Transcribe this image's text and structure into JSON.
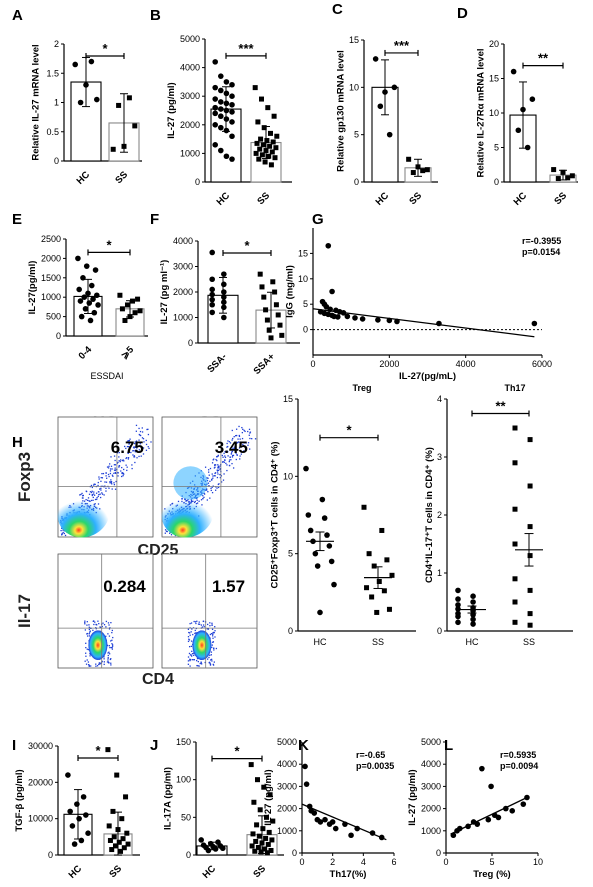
{
  "figure": {
    "panel_letters": [
      "A",
      "B",
      "C",
      "D",
      "E",
      "F",
      "G",
      "H",
      "I",
      "J",
      "K",
      "L"
    ]
  },
  "flow": {
    "col_labels": [
      "HC",
      "SS"
    ],
    "row_labels": [
      "Foxp3",
      "Il-17"
    ],
    "x_labels": [
      "CD25",
      "CD4"
    ],
    "values": [
      [
        "6.75",
        "3.45"
      ],
      [
        "0.284",
        "1.57"
      ]
    ],
    "colors": {
      "dots": "#1f3fd6",
      "dense": "#2fb0ff",
      "core": "#2ad66b",
      "hot": "#ffe23a"
    }
  },
  "chart_data": [
    {
      "panel": "A",
      "type": "bar",
      "categories": [
        "HC",
        "SS"
      ],
      "ylabel": "Relative IL-27 mRNA level",
      "ylim": [
        0,
        2
      ],
      "yticks": [
        0,
        0.5,
        1,
        1.5,
        2
      ],
      "means": [
        1.35,
        0.65
      ],
      "sd": [
        0.42,
        0.5
      ],
      "significance": "*",
      "points": [
        [
          1.65,
          1.3,
          1.05,
          1.0,
          1.7
        ],
        [
          0.2,
          0.25,
          0.6,
          0.95,
          1.08
        ]
      ]
    },
    {
      "panel": "B",
      "type": "bar",
      "categories": [
        "HC",
        "SS"
      ],
      "ylabel": "IL-27 (pg/ml)",
      "ylim": [
        0,
        5000
      ],
      "yticks": [
        0,
        1000,
        2000,
        3000,
        4000,
        5000
      ],
      "means": [
        2550,
        1380
      ],
      "sd": [
        780,
        560
      ],
      "significance": "***",
      "points": [
        [
          4200,
          3700,
          3500,
          3400,
          3300,
          3200,
          3100,
          3000,
          2900,
          2800,
          2750,
          2700,
          2600,
          2550,
          2500,
          2450,
          2400,
          2300,
          2200,
          2100,
          2000,
          1900,
          1800,
          1600,
          1300,
          1100,
          900,
          800
        ],
        [
          3300,
          2900,
          2600,
          2300,
          2100,
          1900,
          1700,
          1600,
          1500,
          1450,
          1400,
          1350,
          1300,
          1250,
          1200,
          1150,
          1100,
          1050,
          1000,
          950,
          900,
          850,
          800,
          700,
          600
        ]
      ]
    },
    {
      "panel": "C",
      "type": "bar",
      "categories": [
        "HC",
        "SS"
      ],
      "ylabel": "Relative gp130 mRNA level",
      "ylim": [
        0,
        15
      ],
      "yticks": [
        0,
        5,
        10,
        15
      ],
      "means": [
        10,
        1.5
      ],
      "sd": [
        2.9,
        0.9
      ],
      "significance": "***",
      "points": [
        [
          13,
          9.5,
          10,
          8,
          5
        ],
        [
          2.4,
          1.6,
          1.3,
          1.0,
          1.2
        ]
      ]
    },
    {
      "panel": "D",
      "type": "bar",
      "categories": [
        "HC",
        "SS"
      ],
      "ylabel": "Relative IL-27Rα mRNA level",
      "ylim": [
        0,
        20
      ],
      "yticks": [
        0,
        5,
        10,
        15,
        20
      ],
      "means": [
        9.7,
        1.0
      ],
      "sd": [
        4.8,
        0.7
      ],
      "significance": "**",
      "points": [
        [
          16,
          10.5,
          12,
          7.5,
          5
        ],
        [
          1.8,
          1.4,
          0.9,
          0.5,
          0.6
        ]
      ]
    },
    {
      "panel": "E",
      "type": "bar",
      "categories": [
        "0-4",
        "⩾5"
      ],
      "xlabel": "ESSDAI",
      "ylabel": "IL-27(pg/ml)",
      "ylim": [
        0,
        2500
      ],
      "yticks": [
        0,
        500,
        1000,
        1500,
        2000,
        2500
      ],
      "means": [
        1020,
        700
      ],
      "sd": [
        440,
        210
      ],
      "significance": "*",
      "points": [
        [
          2000,
          1800,
          1700,
          1500,
          1300,
          1200,
          1100,
          1050,
          1000,
          950,
          900,
          850,
          800,
          700,
          600,
          500,
          400
        ],
        [
          1050,
          950,
          900,
          800,
          700,
          650,
          600,
          500,
          400
        ]
      ]
    },
    {
      "panel": "F",
      "type": "bar",
      "categories": [
        "SSA-",
        "SSA+"
      ],
      "ylabel": "IL-27 (pg ml⁻¹)",
      "ylim": [
        0,
        4000
      ],
      "yticks": [
        0,
        1000,
        2000,
        3000,
        4000
      ],
      "means": [
        1870,
        1290
      ],
      "sd": [
        700,
        700
      ],
      "significance": "*",
      "points": [
        [
          3550,
          2700,
          2500,
          2300,
          2100,
          2000,
          1900,
          1800,
          1700,
          1600,
          1500,
          1400,
          1200,
          1000
        ],
        [
          2700,
          2400,
          2200,
          2000,
          1800,
          1500,
          1300,
          1100,
          900,
          700,
          500,
          300,
          200
        ]
      ]
    },
    {
      "panel": "G",
      "type": "scatter",
      "xlabel": "IL-27(pg/mL)",
      "ylabel": "IgG (mg/ml)",
      "xlim": [
        0,
        6000
      ],
      "xticks": [
        0,
        2000,
        4000,
        6000
      ],
      "ylim": [
        -5,
        20
      ],
      "yticks": [
        0,
        5,
        10,
        15
      ],
      "annotation": [
        "r=-0.3955",
        "p=0.0154"
      ],
      "fit": [
        [
          0,
          4.1
        ],
        [
          5800,
          -1.4
        ]
      ],
      "x": [
        400,
        500,
        250,
        300,
        350,
        450,
        600,
        700,
        800,
        200,
        300,
        400,
        500,
        550,
        650,
        900,
        1100,
        1300,
        1700,
        2000,
        2200,
        3300,
        5800
      ],
      "y": [
        16.5,
        7.5,
        5.5,
        5,
        4.5,
        4,
        3.8,
        3.5,
        3.3,
        3.5,
        3.2,
        3,
        2.8,
        2.6,
        2.5,
        2.6,
        2.3,
        2.1,
        1.9,
        1.8,
        1.6,
        1.2,
        1.2
      ]
    },
    {
      "panel": "H-Treg",
      "type": "scatter-mean",
      "title": "Treg",
      "categories": [
        "HC",
        "SS"
      ],
      "ylabel": "CD25⁺Foxp3⁺T cells in CD4⁺ (%)",
      "ylim": [
        0,
        15
      ],
      "yticks": [
        0,
        5,
        10,
        15
      ],
      "means": [
        5.8,
        3.45
      ],
      "sem": [
        0.6,
        0.7
      ],
      "significance": "*",
      "points": [
        [
          10.5,
          8.5,
          7.5,
          7.3,
          6.5,
          6.2,
          5.8,
          5.5,
          5,
          4.5,
          4.2,
          3,
          1.2
        ],
        [
          8,
          6.5,
          5,
          4.6,
          4.2,
          3.6,
          3.2,
          2.8,
          2.6,
          2.2,
          1.4,
          1.2
        ]
      ]
    },
    {
      "panel": "H-Th17",
      "type": "scatter-mean",
      "title": "Th17",
      "categories": [
        "HC",
        "SS"
      ],
      "ylabel": "CD4⁺IL-17⁺T cells in CD4⁺ (%)",
      "ylim": [
        0,
        4
      ],
      "yticks": [
        0,
        1,
        2,
        3,
        4
      ],
      "means": [
        0.37,
        1.4
      ],
      "sem": [
        0.06,
        0.28
      ],
      "significance": "**",
      "points": [
        [
          0.7,
          0.6,
          0.55,
          0.5,
          0.45,
          0.4,
          0.38,
          0.35,
          0.3,
          0.28,
          0.25,
          0.2,
          0.15,
          0.12
        ],
        [
          3.5,
          3.3,
          2.9,
          2.5,
          2.1,
          1.8,
          1.5,
          1.3,
          0.9,
          0.7,
          0.5,
          0.3,
          0.15,
          0.1
        ]
      ]
    },
    {
      "panel": "I",
      "type": "bar",
      "categories": [
        "HC",
        "SS"
      ],
      "ylabel": "TGF-β (pg/ml)",
      "ylim": [
        0,
        30000
      ],
      "yticks": [
        0,
        10000,
        20000,
        30000
      ],
      "means": [
        11200,
        5800
      ],
      "sd": [
        6800,
        6000
      ],
      "significance": "*",
      "points": [
        [
          22000,
          16000,
          14000,
          12000,
          11000,
          10000,
          8000,
          6000,
          4000,
          3000
        ],
        [
          29000,
          22000,
          16000,
          12000,
          10000,
          8000,
          7000,
          6000,
          5000,
          4500,
          4000,
          3500,
          3000,
          2500,
          2000,
          1500,
          1000
        ]
      ]
    },
    {
      "panel": "J",
      "type": "bar",
      "categories": [
        "HC",
        "SS"
      ],
      "ylabel": "IL-17A (pg/ml)",
      "ylim": [
        0,
        150
      ],
      "yticks": [
        0,
        50,
        100,
        150
      ],
      "means": [
        12,
        27
      ],
      "sd": [
        5,
        25
      ],
      "significance": "*",
      "points": [
        [
          20,
          17,
          15,
          13,
          12,
          11,
          10,
          9,
          8,
          6
        ],
        [
          120,
          100,
          90,
          80,
          70,
          60,
          50,
          45,
          40,
          35,
          30,
          28,
          25,
          22,
          20,
          18,
          16,
          14,
          12,
          10,
          8,
          6,
          5,
          4,
          3
        ]
      ]
    },
    {
      "panel": "K",
      "type": "scatter",
      "xlabel": "Th17(%)",
      "ylabel": "IL-27 (pg/ml)",
      "xlim": [
        0,
        6
      ],
      "xticks": [
        0,
        2,
        4,
        6
      ],
      "ylim": [
        0,
        5000
      ],
      "yticks": [
        0,
        1000,
        2000,
        3000,
        4000,
        5000
      ],
      "annotation": [
        "r=-0.65",
        "p=0.0035"
      ],
      "fit": [
        [
          0,
          2200
        ],
        [
          5.5,
          600
        ]
      ],
      "x": [
        0.2,
        0.3,
        0.5,
        0.6,
        0.8,
        1.0,
        1.2,
        1.5,
        1.8,
        2.0,
        2.2,
        2.8,
        3.2,
        3.6,
        4.6,
        5.2
      ],
      "y": [
        3900,
        3100,
        2100,
        1900,
        1800,
        1500,
        1400,
        1500,
        1300,
        1400,
        1100,
        1300,
        800,
        1100,
        900,
        700
      ]
    },
    {
      "panel": "L",
      "type": "scatter",
      "xlabel": "Treg (%)",
      "ylabel": "IL-27 (pg/ml)",
      "xlim": [
        0,
        10
      ],
      "xticks": [
        0,
        5,
        10
      ],
      "ylim": [
        0,
        5000
      ],
      "yticks": [
        0,
        1000,
        2000,
        3000,
        4000,
        5000
      ],
      "annotation": [
        "r=0.5935",
        "p=0.0094"
      ],
      "fit": [
        [
          0.5,
          850
        ],
        [
          8.8,
          2500
        ]
      ],
      "x": [
        0.8,
        1.2,
        1.5,
        2.4,
        3.0,
        3.4,
        3.9,
        4.6,
        4.9,
        5.3,
        5.7,
        6.5,
        7.2,
        8.4,
        8.8
      ],
      "y": [
        800,
        1000,
        1100,
        1200,
        1400,
        1300,
        3800,
        1500,
        3000,
        1700,
        1600,
        2000,
        1900,
        2200,
        2500
      ]
    }
  ]
}
